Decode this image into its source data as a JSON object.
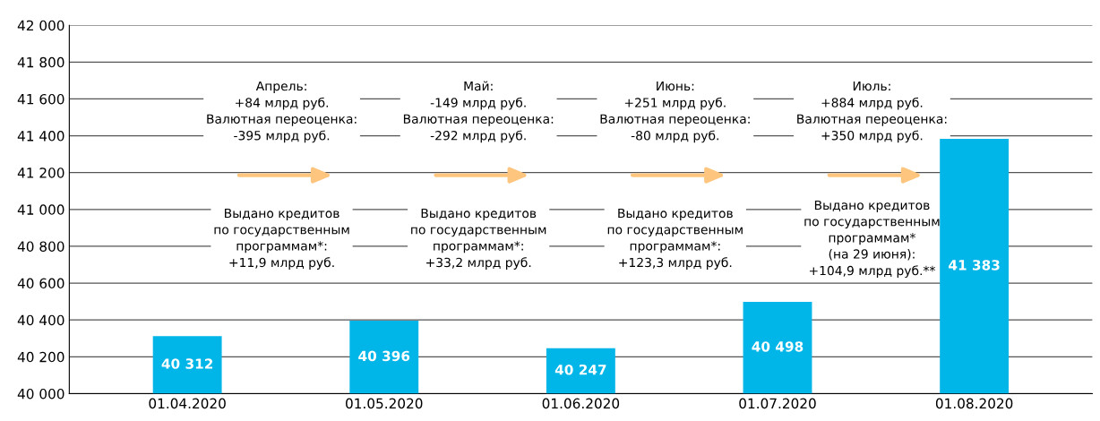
{
  "chart_data": {
    "type": "bar",
    "categories": [
      "01.04.2020",
      "01.05.2020",
      "01.06.2020",
      "01.07.2020",
      "01.08.2020"
    ],
    "values": [
      40312,
      40396,
      40247,
      40498,
      41383
    ],
    "value_labels": [
      "40 312",
      "40 396",
      "40 247",
      "40 498",
      "41 383"
    ],
    "color": "#00b5e8",
    "ylim": [
      40000,
      42000
    ],
    "yticks": [
      {
        "value": 40000,
        "label": "40 000"
      },
      {
        "value": 40200,
        "label": "40 200"
      },
      {
        "value": 40400,
        "label": "40 400"
      },
      {
        "value": 40600,
        "label": "40 600"
      },
      {
        "value": 40800,
        "label": "40 800"
      },
      {
        "value": 41000,
        "label": "41 000"
      },
      {
        "value": 41200,
        "label": "41 200"
      },
      {
        "value": 41400,
        "label": "41 400"
      },
      {
        "value": 41600,
        "label": "41 600"
      },
      {
        "value": 41800,
        "label": "41 800"
      },
      {
        "value": 42000,
        "label": "42 000"
      }
    ],
    "grid": "y",
    "annotations": [
      "Апрель:\n+84 млрд руб.\nВалютная переоценка:\n-395 млрд руб.",
      "Выдано кредитов\nпо государственным\nпрограммам*:\n+11,9 млрд руб.",
      "Май:\n-149 млрд руб.\nВалютная переоценка:\n-292 млрд руб.",
      "Выдано кредитов\nпо государственным\nпрограммам*:\n+33,2 млрд руб.",
      "Июнь:\n+251 млрд руб.\nВалютная переоценка:\n-80 млрд руб.",
      "Выдано кредитов\nпо государственным\nпрограммам*:\n+123,3 млрд руб.",
      "Июль:\n+884 млрд руб.\nВалютная переоценка:\n+350 млрд руб.",
      "Выдано кредитов\nпо государственным\nпрограммам*\n(на 29 июня):\n+104,9 млрд руб.**"
    ]
  }
}
